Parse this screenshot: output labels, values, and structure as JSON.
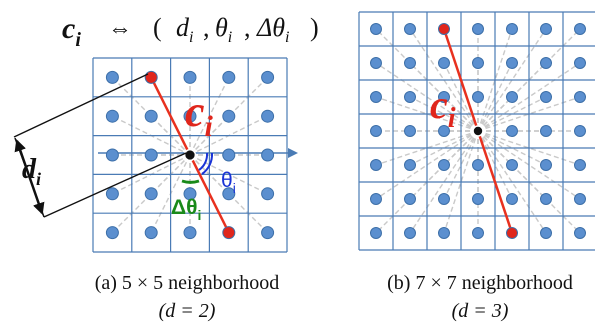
{
  "header": {
    "c": "c",
    "c_sub": "i",
    "equiv": "⇔",
    "open_paren": "(",
    "d": "d",
    "d_sub": "i",
    "comma1": ",",
    "theta": "θ",
    "theta_sub": "i",
    "comma2": ",",
    "delta_theta": "Δθ",
    "delta_theta_sub": "i",
    "close_paren": ")"
  },
  "panel_a": {
    "grid_size": 5,
    "label_c": "c",
    "label_c_sub": "i",
    "label_d": "d",
    "label_d_sub": "i",
    "label_theta": "θ",
    "label_theta_sub": "i",
    "label_delta_theta": "Δθ",
    "label_delta_theta_sub": "i",
    "caption_line1": "(a) 5 × 5 neighborhood",
    "caption_line2": "(d = 2)"
  },
  "panel_b": {
    "grid_size": 7,
    "label_c": "c",
    "label_c_sub": "i",
    "caption_line1": "(b) 7 × 7 neighborhood",
    "caption_line2": "(d = 3)"
  },
  "colors": {
    "grid_line": "#4a7bb5",
    "dot_fill": "#5b8fcf",
    "dot_stroke": "#3d6fa8",
    "endpoint_fill": "#e0261c",
    "center_fill": "#111111",
    "segment": "#e8311f",
    "ray": "#c9c9c9",
    "theta_color": "#1a34d6",
    "delta_theta_color": "#1a8a1a",
    "text": "#111111"
  }
}
